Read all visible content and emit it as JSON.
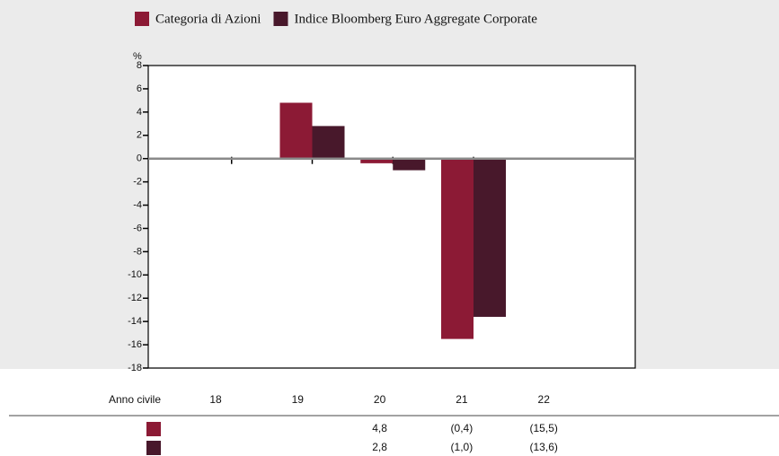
{
  "chart_data": {
    "type": "bar",
    "categories": [
      "18",
      "19",
      "20",
      "21",
      "22"
    ],
    "y_label": "%",
    "row_header": "Anno civile",
    "series": [
      {
        "name": "Categoria di Azioni",
        "color": "#8c1a35",
        "values": [
          null,
          null,
          4.8,
          -0.4,
          -15.5
        ],
        "value_labels": [
          null,
          null,
          "4,8",
          "(0,4)",
          "(15,5)"
        ]
      },
      {
        "name": "Indice Bloomberg Euro Aggregate Corporate",
        "color": "#48182b",
        "values": [
          null,
          null,
          2.8,
          -1.0,
          -13.6
        ],
        "value_labels": [
          null,
          null,
          "2,8",
          "(1,0)",
          "(13,6)"
        ]
      }
    ],
    "ylim": [
      -18,
      8
    ],
    "yticks": [
      8,
      6,
      4,
      2,
      0,
      -2,
      -4,
      -6,
      -8,
      -10,
      -12,
      -14,
      -16,
      -18
    ]
  }
}
